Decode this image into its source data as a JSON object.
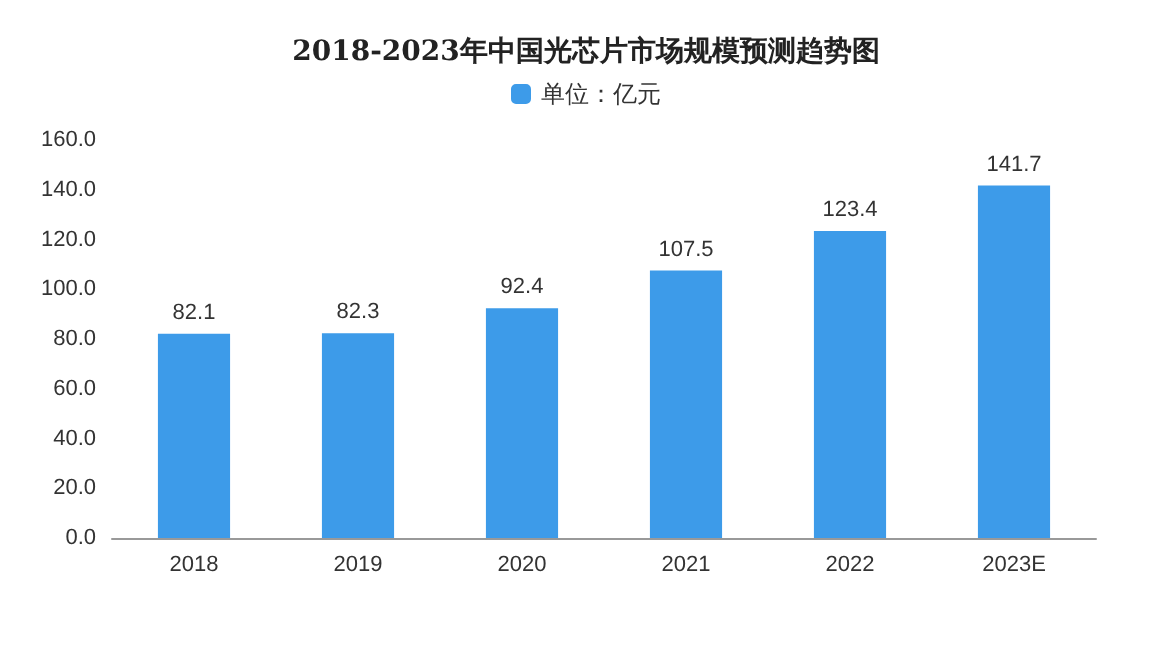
{
  "chart_data": {
    "type": "bar",
    "title": "2018-2023年中国光芯片市场规模预测趋势图",
    "categories": [
      "2018",
      "2019",
      "2020",
      "2021",
      "2022",
      "2023E"
    ],
    "series": [
      {
        "name": "单位：亿元",
        "color": "#3d9be9",
        "values": [
          82.1,
          82.3,
          92.4,
          107.5,
          123.4,
          141.7
        ]
      }
    ],
    "ylim": [
      0,
      160
    ],
    "yticks": [
      {
        "value": 0,
        "label": "0.0"
      },
      {
        "value": 20,
        "label": "20.0"
      },
      {
        "value": 40,
        "label": "40.0"
      },
      {
        "value": 60,
        "label": "60.0"
      },
      {
        "value": 80,
        "label": "80.0"
      },
      {
        "value": 100,
        "label": "100.0"
      },
      {
        "value": 120,
        "label": "120.0"
      },
      {
        "value": 140,
        "label": "140.0"
      },
      {
        "value": 160,
        "label": "160.0"
      }
    ],
    "data_labels": true,
    "legend": "top",
    "grid": false
  }
}
